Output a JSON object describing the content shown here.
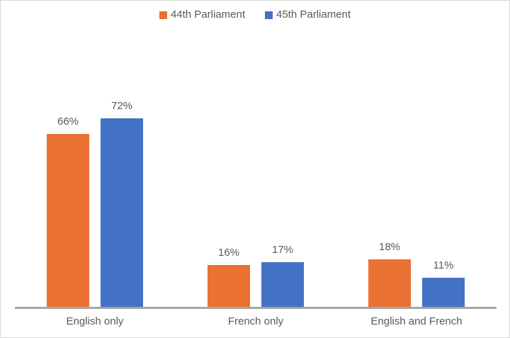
{
  "chart_data": {
    "type": "bar",
    "title": "",
    "categories": [
      "English only",
      "French only",
      "English and French"
    ],
    "series": [
      {
        "name": "44th Parliament",
        "color": "#E97132",
        "values": [
          66,
          16,
          18
        ],
        "labels": [
          "66%",
          "16%",
          "18%"
        ]
      },
      {
        "name": "45th Parliament",
        "color": "#4472C4",
        "values": [
          72,
          17,
          11
        ],
        "labels": [
          "72%",
          "17%",
          "11%"
        ]
      }
    ],
    "ylim": [
      0,
      80
    ],
    "value_suffix": "%",
    "grid": false,
    "legend_position": "top",
    "y_axis_visible": false,
    "x_axis_visible": true
  },
  "colors": {
    "background": "#FFFFFF",
    "frame_border": "#D9D9D9",
    "text": "#595959",
    "axis_line": "#A6A6A6"
  }
}
